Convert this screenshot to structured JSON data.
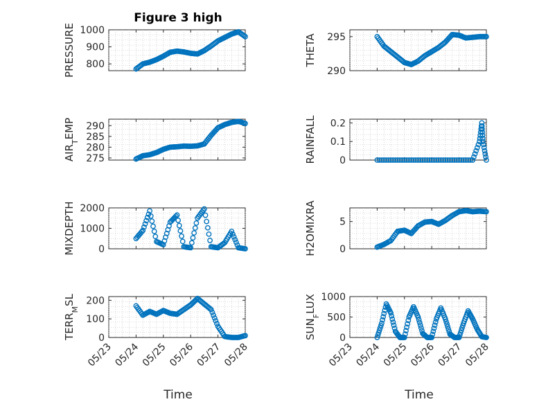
{
  "figure": {
    "title": "Figure 3 high",
    "marker_color": "#0072BD",
    "x_axis_label": "Time",
    "x_date_ticks": [
      "05/23",
      "05/24",
      "05/25",
      "05/26",
      "05/27",
      "05/28"
    ]
  },
  "chart_data": [
    {
      "type": "scatter",
      "name": "pressure",
      "ylabel": "PRESSURE",
      "ylabel_sub": "",
      "ylim": [
        760,
        1000
      ],
      "yticks": [
        800,
        900,
        1000
      ],
      "xlim": [
        "05/23",
        "05/28"
      ],
      "x": [
        "05/24 00:00",
        "05/24 06:00",
        "05/24 12:00",
        "05/24 18:00",
        "05/25 00:00",
        "05/25 06:00",
        "05/25 12:00",
        "05/25 18:00",
        "05/26 00:00",
        "05/26 06:00",
        "05/26 12:00",
        "05/26 18:00",
        "05/27 00:00",
        "05/27 06:00",
        "05/27 12:00",
        "05/27 18:00",
        "05/28 00:00"
      ],
      "y": [
        770,
        800,
        810,
        825,
        845,
        868,
        875,
        870,
        862,
        858,
        878,
        905,
        935,
        955,
        975,
        988,
        960
      ]
    },
    {
      "type": "scatter",
      "name": "theta",
      "ylabel": "THETA",
      "ylabel_sub": "",
      "ylim": [
        290,
        296
      ],
      "yticks": [
        290,
        295
      ],
      "xlim": [
        "05/23",
        "05/28"
      ],
      "x": [
        "05/24 00:00",
        "05/24 06:00",
        "05/24 12:00",
        "05/24 18:00",
        "05/25 00:00",
        "05/25 06:00",
        "05/25 12:00",
        "05/25 18:00",
        "05/26 00:00",
        "05/26 06:00",
        "05/26 12:00",
        "05/26 18:00",
        "05/27 00:00",
        "05/27 06:00",
        "05/27 12:00",
        "05/27 18:00",
        "05/28 00:00"
      ],
      "y": [
        295.0,
        293.6,
        292.8,
        292.0,
        291.2,
        290.9,
        291.4,
        292.2,
        292.8,
        293.4,
        294.2,
        295.3,
        295.2,
        294.8,
        294.9,
        295.0,
        295.0
      ]
    },
    {
      "type": "scatter",
      "name": "air-temp",
      "ylabel": "AIR",
      "ylabel_sub": "T",
      "ylabel_rest": "EMP",
      "ylim": [
        274,
        293
      ],
      "yticks": [
        275,
        280,
        285,
        290
      ],
      "xlim": [
        "05/23",
        "05/28"
      ],
      "x": [
        "05/24 00:00",
        "05/24 06:00",
        "05/24 12:00",
        "05/24 18:00",
        "05/25 00:00",
        "05/25 06:00",
        "05/25 12:00",
        "05/25 18:00",
        "05/26 00:00",
        "05/26 06:00",
        "05/26 12:00",
        "05/26 18:00",
        "05/27 00:00",
        "05/27 06:00",
        "05/27 12:00",
        "05/27 18:00",
        "05/28 00:00"
      ],
      "y": [
        274.5,
        276.0,
        276.5,
        277.5,
        279.0,
        280.0,
        280.2,
        280.5,
        280.4,
        280.6,
        281.5,
        285.5,
        289.0,
        290.5,
        291.5,
        292.0,
        291.0
      ]
    },
    {
      "type": "scatter",
      "name": "rainfall",
      "ylabel": "RAINFALL",
      "ylabel_sub": "",
      "ylim": [
        0,
        0.22
      ],
      "yticks": [
        0,
        0.1,
        0.2
      ],
      "xlim": [
        "05/23",
        "05/28"
      ],
      "x": [
        "05/24 00:00",
        "05/24 12:00",
        "05/25 00:00",
        "05/25 12:00",
        "05/26 00:00",
        "05/26 12:00",
        "05/27 00:00",
        "05/27 12:00",
        "05/27 18:00",
        "05/27 20:00",
        "05/27 21:00",
        "05/28 00:00"
      ],
      "y": [
        0,
        0,
        0,
        0,
        0,
        0,
        0,
        0,
        0.1,
        0.2,
        0.1,
        0
      ]
    },
    {
      "type": "scatter",
      "name": "mixdepth",
      "ylabel": "MIXDEPTH",
      "ylabel_sub": "",
      "ylim": [
        0,
        2000
      ],
      "yticks": [
        0,
        1000,
        2000
      ],
      "xlim": [
        "05/23",
        "05/28"
      ],
      "x": [
        "05/24 00:00",
        "05/24 06:00",
        "05/24 12:00",
        "05/24 18:00",
        "05/25 00:00",
        "05/25 06:00",
        "05/25 12:00",
        "05/25 18:00",
        "05/26 00:00",
        "05/26 06:00",
        "05/26 12:00",
        "05/26 18:00",
        "05/27 00:00",
        "05/27 06:00",
        "05/27 12:00",
        "05/27 18:00",
        "05/28 00:00"
      ],
      "y": [
        500,
        900,
        1850,
        350,
        200,
        1300,
        1650,
        100,
        50,
        1500,
        1950,
        100,
        50,
        300,
        850,
        50,
        0
      ]
    },
    {
      "type": "scatter",
      "name": "h2omixra",
      "ylabel": "H2OMIXRA",
      "ylabel_sub": "",
      "ylim": [
        0,
        7.5
      ],
      "yticks": [
        0,
        5
      ],
      "xlim": [
        "05/23",
        "05/28"
      ],
      "x": [
        "05/24 00:00",
        "05/24 06:00",
        "05/24 12:00",
        "05/24 18:00",
        "05/25 00:00",
        "05/25 06:00",
        "05/25 12:00",
        "05/25 18:00",
        "05/26 00:00",
        "05/26 06:00",
        "05/26 12:00",
        "05/26 18:00",
        "05/27 00:00",
        "05/27 06:00",
        "05/27 12:00",
        "05/27 18:00",
        "05/28 00:00"
      ],
      "y": [
        0.3,
        0.8,
        1.5,
        3.2,
        3.4,
        2.8,
        4.2,
        4.9,
        5.0,
        4.5,
        5.2,
        6.1,
        6.8,
        7.0,
        6.8,
        6.9,
        6.8
      ]
    },
    {
      "type": "scatter",
      "name": "terr-msl",
      "ylabel": "TERR",
      "ylabel_sub": "M",
      "ylabel_rest": "SL",
      "ylim": [
        0,
        220
      ],
      "yticks": [
        0,
        100,
        200
      ],
      "xlim": [
        "05/23",
        "05/28"
      ],
      "x": [
        "05/24 00:00",
        "05/24 06:00",
        "05/24 12:00",
        "05/24 18:00",
        "05/25 00:00",
        "05/25 06:00",
        "05/25 12:00",
        "05/25 18:00",
        "05/26 00:00",
        "05/26 06:00",
        "05/26 12:00",
        "05/26 18:00",
        "05/27 00:00",
        "05/27 06:00",
        "05/27 12:00",
        "05/27 18:00",
        "05/28 00:00"
      ],
      "y": [
        170,
        120,
        140,
        125,
        145,
        130,
        125,
        150,
        175,
        210,
        180,
        150,
        60,
        5,
        0,
        0,
        10
      ]
    },
    {
      "type": "scatter",
      "name": "sun-flux",
      "ylabel": "SUN",
      "ylabel_sub": "F",
      "ylabel_rest": "LUX",
      "ylim": [
        0,
        1000
      ],
      "yticks": [
        0,
        500,
        1000
      ],
      "xlim": [
        "05/23",
        "05/28"
      ],
      "x": [
        "05/24 00:00",
        "05/24 04:00",
        "05/24 08:00",
        "05/24 12:00",
        "05/24 16:00",
        "05/24 20:00",
        "05/25 00:00",
        "05/25 04:00",
        "05/25 08:00",
        "05/25 12:00",
        "05/25 16:00",
        "05/25 20:00",
        "05/26 00:00",
        "05/26 04:00",
        "05/26 08:00",
        "05/26 12:00",
        "05/26 16:00",
        "05/26 20:00",
        "05/27 00:00",
        "05/27 04:00",
        "05/27 08:00",
        "05/27 12:00",
        "05/27 16:00",
        "05/27 20:00",
        "05/28 00:00"
      ],
      "y": [
        0,
        350,
        820,
        600,
        150,
        0,
        0,
        500,
        750,
        500,
        100,
        0,
        0,
        450,
        720,
        450,
        80,
        0,
        0,
        350,
        650,
        450,
        200,
        20,
        0
      ]
    }
  ]
}
